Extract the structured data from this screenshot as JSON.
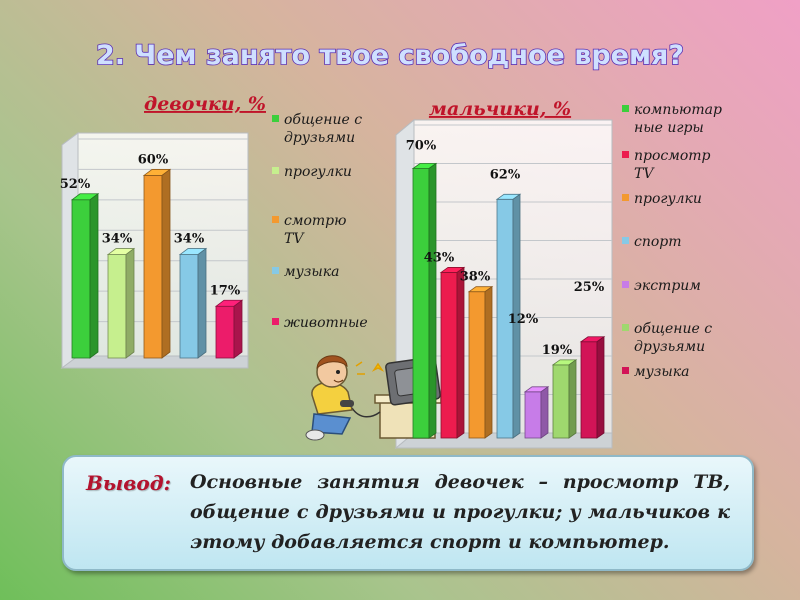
{
  "slide": {
    "title": "2. Чем занято твое свободное время?",
    "conclusion_label": "Вывод:",
    "conclusion_text": "Основные занятия девочек – просмотр ТВ, общение с друзьями и прогулки; у мальчиков к этому добавляется спорт и компьютер."
  },
  "chart_data": [
    {
      "type": "bar",
      "title": "девочки, %",
      "categories": [
        "общение с друзьями",
        "прогулки",
        "смотрю TV",
        "музыка",
        "животные"
      ],
      "legend_lines": [
        [
          "общение с",
          "друзьями"
        ],
        [
          "прогулки"
        ],
        [
          "смотрю",
          "TV"
        ],
        [
          "музыка"
        ],
        [
          "животные"
        ]
      ],
      "values": [
        52,
        34,
        60,
        34,
        17
      ],
      "value_labels": [
        "52%",
        "34%",
        "60%",
        "34%",
        "17%"
      ],
      "colors": [
        "#3ccf3c",
        "#c6ef8e",
        "#f3992f",
        "#86c9e6",
        "#ec1c6a"
      ],
      "ylim": [
        0,
        70
      ],
      "grid": true,
      "legend_position": "right"
    },
    {
      "type": "bar",
      "title": "мальчики, %",
      "categories": [
        "компьютарные игры",
        "просмотр TV",
        "прогулки",
        "спорт",
        "экстрим",
        "общение с друзьями",
        "музыка"
      ],
      "legend_lines": [
        [
          "компьютар",
          "ные игры"
        ],
        [
          "просмотр",
          "TV"
        ],
        [
          "прогулки"
        ],
        [
          "спорт"
        ],
        [
          "экстрим"
        ],
        [
          "общение с",
          "друзьями"
        ],
        [
          "музыка"
        ]
      ],
      "values": [
        70,
        43,
        38,
        62,
        12,
        19,
        25
      ],
      "value_labels": [
        "70%",
        "43%",
        "38%",
        "62%",
        "12%",
        "19%",
        "25%"
      ],
      "colors": [
        "#3ccf3c",
        "#ec1c4e",
        "#f3992f",
        "#86c9e6",
        "#c77ce8",
        "#9fd86e",
        "#d21457"
      ],
      "ylim": [
        0,
        80
      ],
      "grid": true,
      "legend_position": "right"
    }
  ],
  "illustration": {
    "icon": "boy-playing-computer-icon"
  }
}
